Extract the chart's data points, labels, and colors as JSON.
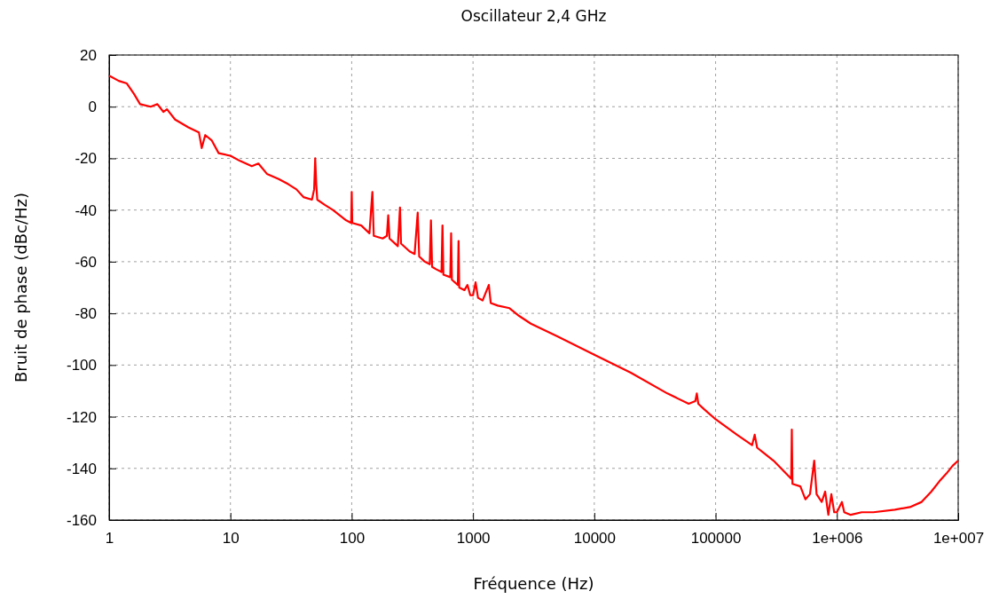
{
  "chart_data": {
    "type": "line",
    "title": "Oscillateur 2,4 GHz",
    "xlabel": "Fréquence (Hz)",
    "ylabel": "Bruit de phase (dBc/Hz)",
    "log": "x",
    "grid": true,
    "marker": "none",
    "line_style": "solid",
    "xlim": [
      1,
      10000000
    ],
    "xticks": [
      1,
      10,
      100,
      1000,
      10000,
      100000,
      {
        "value": 1000000,
        "label": "1e+006"
      },
      {
        "value": 10000000,
        "label": "1e+007"
      }
    ],
    "ylim": [
      -160,
      20
    ],
    "yticks": [
      -160,
      -140,
      -120,
      -100,
      -80,
      -60,
      -40,
      -20,
      0,
      20
    ],
    "series": [
      {
        "color": "#ff0000",
        "x": [
          1,
          1.2,
          1.4,
          1.6,
          1.8,
          2.2,
          2.5,
          2.8,
          3,
          3.5,
          4.5,
          5.5,
          5.8,
          6.2,
          7,
          8,
          10,
          12,
          15,
          17,
          20,
          25,
          30,
          35,
          40,
          47,
          49,
          50,
          51,
          52,
          60,
          70,
          90,
          99,
          100,
          101,
          120,
          140,
          148,
          152,
          180,
          195,
          200,
          205,
          240,
          250,
          255,
          300,
          330,
          350,
          360,
          400,
          440,
          450,
          460,
          500,
          550,
          560,
          570,
          650,
          660,
          670,
          750,
          760,
          770,
          850,
          900,
          950,
          1000,
          1050,
          1100,
          1200,
          1350,
          1400,
          1600,
          2000,
          2400,
          3000,
          5000,
          10000,
          20000,
          40000,
          60000,
          68000,
          70000,
          72000,
          80000,
          100000,
          150000,
          200000,
          210000,
          220000,
          300000,
          400000,
          420000,
          425000,
          430000,
          500000,
          550000,
          600000,
          650000,
          680000,
          750000,
          800000,
          850000,
          900000,
          950000,
          1000000,
          1100000,
          1150000,
          1300000,
          1600000,
          2000000,
          3000000,
          4000000,
          5000000,
          6000000,
          7000000,
          8000000,
          9000000,
          10000000
        ],
        "values": [
          12,
          10,
          9,
          5,
          1,
          0,
          1,
          -2,
          -1,
          -5,
          -8,
          -10,
          -16,
          -11,
          -13,
          -18,
          -19,
          -21,
          -23,
          -22,
          -26,
          -28,
          -30,
          -32,
          -35,
          -36,
          -32,
          -20,
          -30,
          -36,
          -38,
          -40,
          -44,
          -45,
          -33,
          -45,
          -46,
          -49,
          -33,
          -50,
          -51,
          -50,
          -42,
          -51,
          -54,
          -39,
          -53,
          -56,
          -57,
          -41,
          -58,
          -60,
          -61,
          -44,
          -62,
          -63,
          -64,
          -46,
          -65,
          -66,
          -49,
          -67,
          -69,
          -52,
          -70,
          -71,
          -69,
          -73,
          -73,
          -68,
          -74,
          -75,
          -69,
          -76,
          -77,
          -78,
          -81,
          -84,
          -89,
          -96,
          -103,
          -111,
          -115,
          -114,
          -111,
          -115,
          -117,
          -121,
          -127,
          -131,
          -127,
          -132,
          -137,
          -143,
          -144,
          -125,
          -146,
          -147,
          -152,
          -150,
          -137,
          -150,
          -153,
          -149,
          -158,
          -150,
          -157,
          -157,
          -153,
          -157,
          -158,
          -157,
          -157,
          -156,
          -155,
          -153,
          -149,
          -145,
          -142,
          -139,
          -137
        ]
      }
    ]
  }
}
